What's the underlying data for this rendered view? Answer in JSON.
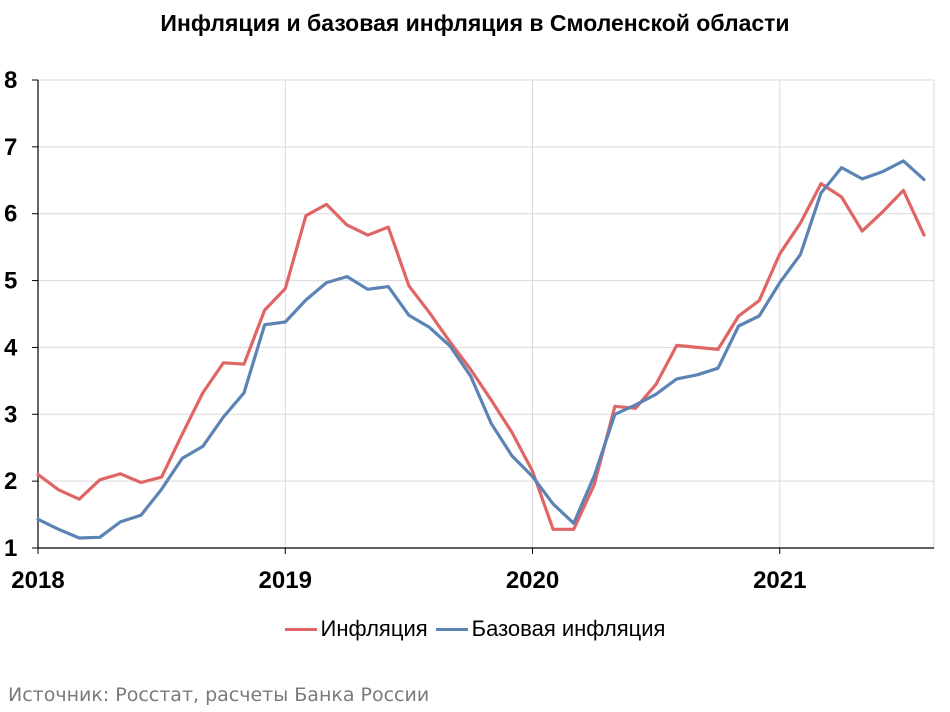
{
  "colors": {
    "inflation": "#e06666",
    "core": "#5b84b5",
    "grid": "#d9d9d9",
    "axis": "#000000"
  },
  "source": "Источник: Росстат, расчеты Банка России",
  "chart_data": {
    "type": "line",
    "title": "Инфляция и базовая инфляция в Смоленской области",
    "x_tick_labels": [
      "2018",
      "2019",
      "2020",
      "2021"
    ],
    "x_tick_months": [
      0,
      12,
      24,
      36
    ],
    "ylim": [
      1,
      8
    ],
    "y_ticks": [
      1,
      2,
      3,
      4,
      5,
      6,
      7,
      8
    ],
    "x_range_months": [
      0,
      43
    ],
    "grid": true,
    "legend_position": "bottom",
    "series": [
      {
        "name": "Инфляция",
        "color": "#e06666",
        "values": [
          2.1,
          1.87,
          1.73,
          2.02,
          2.11,
          1.98,
          2.06,
          2.7,
          3.32,
          3.77,
          3.75,
          4.56,
          4.88,
          5.97,
          6.14,
          5.83,
          5.68,
          5.8,
          4.92,
          4.52,
          4.08,
          3.67,
          3.21,
          2.73,
          2.15,
          1.28,
          1.28,
          1.95,
          3.12,
          3.09,
          3.45,
          4.03,
          4.0,
          3.97,
          4.47,
          4.7,
          5.4,
          5.86,
          6.45,
          6.25,
          5.74,
          6.03,
          6.35,
          5.68
        ]
      },
      {
        "name": "Базовая инфляция",
        "color": "#5b84b5",
        "values": [
          1.43,
          1.28,
          1.15,
          1.16,
          1.39,
          1.49,
          1.88,
          2.34,
          2.52,
          2.96,
          3.32,
          4.34,
          4.38,
          4.71,
          4.97,
          5.06,
          4.87,
          4.91,
          4.48,
          4.3,
          4.02,
          3.57,
          2.86,
          2.38,
          2.07,
          1.66,
          1.37,
          2.08,
          3.0,
          3.14,
          3.3,
          3.53,
          3.59,
          3.69,
          4.32,
          4.47,
          4.97,
          5.39,
          6.31,
          6.69,
          6.52,
          6.63,
          6.79,
          6.51
        ]
      }
    ]
  }
}
